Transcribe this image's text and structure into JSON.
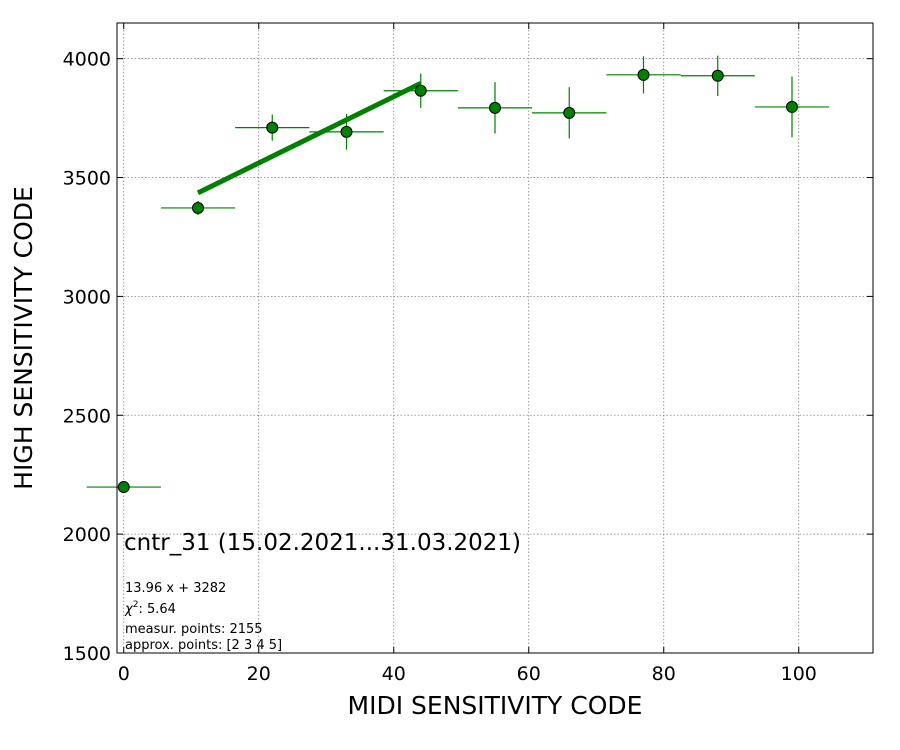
{
  "chart_data": {
    "type": "scatter",
    "xlabel": "MIDI SENSITIVITY CODE",
    "ylabel": "HIGH SENSITIVITY CODE",
    "xlim": [
      -1,
      111
    ],
    "ylim": [
      1500,
      4150
    ],
    "xticks": [
      0,
      20,
      40,
      60,
      80,
      100
    ],
    "yticks": [
      1500,
      2000,
      2500,
      3000,
      3500,
      4000
    ],
    "grid": true,
    "colors": {
      "series": "#008000",
      "marker_face": "#008000",
      "marker_edge": "#000000"
    },
    "series": [
      {
        "x": [
          0,
          11,
          22,
          33,
          44,
          55,
          66,
          77,
          88,
          99
        ],
        "y": [
          2198,
          3372,
          3710,
          3692,
          3865,
          3793,
          3772,
          3932,
          3928,
          3797
        ],
        "x_err": [
          5.5,
          5.5,
          5.5,
          5.5,
          5.5,
          5.5,
          5.5,
          5.5,
          5.5,
          5.5
        ],
        "y_err": [
          0,
          30,
          55,
          75,
          72,
          108,
          108,
          78,
          85,
          128
        ]
      }
    ],
    "fit_line": {
      "slope": 13.96,
      "intercept": 3282,
      "x_range": [
        11,
        44
      ]
    },
    "annotations": {
      "title": "cntr_31 (15.02.2021...31.03.2021)",
      "equation": "13.96 x + 3282",
      "chi_label": "χ",
      "chi_sup": "2",
      "chi_value": ": 5.64",
      "measur": "measur. points: 2155",
      "approx": "approx. points: [2 3 4 5]"
    }
  }
}
